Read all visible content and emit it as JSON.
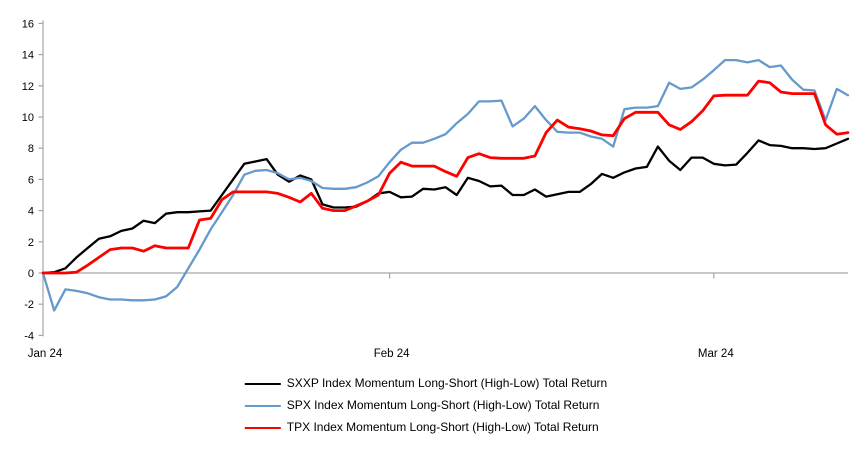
{
  "chart_data": {
    "type": "line",
    "title": "",
    "xlabel": "",
    "ylabel": "",
    "ylim": [
      -4,
      16
    ],
    "y_ticks": [
      16,
      14,
      12,
      10,
      8,
      6,
      4,
      2,
      0,
      -2,
      -4
    ],
    "grid": "zero-baseline-only",
    "legend_position": "bottom",
    "axis_color": "#A6A6A6",
    "x_ticks": [
      {
        "label": "Jan 24",
        "index": 0
      },
      {
        "label": "Feb 24",
        "index": 31
      },
      {
        "label": "Mar 24",
        "index": 60
      }
    ],
    "n_points": 73,
    "series": [
      {
        "name": "SXXP Index Momentum Long-Short (High-Low) Total Return",
        "color": "#000000",
        "line_width": 2.3,
        "values": [
          0,
          0.05,
          0.3,
          1.0,
          1.6,
          2.2,
          2.35,
          2.7,
          2.85,
          3.35,
          3.2,
          3.8,
          3.9,
          3.9,
          3.95,
          4.0,
          5.0,
          6.0,
          7.0,
          7.15,
          7.3,
          6.3,
          5.85,
          6.25,
          6.0,
          4.4,
          4.2,
          4.2,
          4.25,
          4.6,
          5.1,
          5.2,
          4.85,
          4.9,
          5.4,
          5.35,
          5.5,
          5.0,
          6.1,
          5.9,
          5.55,
          5.6,
          5.0,
          5.0,
          5.35,
          4.9,
          5.05,
          5.2,
          5.2,
          5.7,
          6.35,
          6.1,
          6.45,
          6.7,
          6.8,
          8.1,
          7.2,
          6.6,
          7.4,
          7.4,
          7.0,
          6.9,
          6.95,
          7.7,
          8.5,
          8.2,
          8.15,
          8.0,
          8.0,
          7.95,
          8.0,
          8.3,
          8.6
        ]
      },
      {
        "name": "SPX Index Momentum Long-Short (High-Low) Total Return",
        "color": "#6699CC",
        "line_width": 2.3,
        "values": [
          0,
          -2.4,
          -1.05,
          -1.15,
          -1.3,
          -1.55,
          -1.7,
          -1.7,
          -1.75,
          -1.75,
          -1.7,
          -1.5,
          -0.9,
          0.3,
          1.5,
          2.8,
          3.9,
          5.0,
          6.3,
          6.55,
          6.6,
          6.4,
          6.0,
          6.1,
          5.9,
          5.45,
          5.4,
          5.4,
          5.5,
          5.8,
          6.2,
          7.1,
          7.9,
          8.35,
          8.35,
          8.6,
          8.9,
          9.6,
          10.2,
          11.0,
          11.0,
          11.05,
          9.4,
          9.9,
          10.7,
          9.8,
          9.05,
          9.0,
          9.0,
          8.75,
          8.6,
          8.1,
          10.5,
          10.6,
          10.6,
          10.7,
          12.2,
          11.8,
          11.9,
          12.4,
          13.0,
          13.65,
          13.65,
          13.5,
          13.65,
          13.2,
          13.3,
          12.4,
          11.75,
          11.7,
          9.8,
          11.8,
          11.4
        ]
      },
      {
        "name": "TPX Index Momentum Long-Short (High-Low) Total Return",
        "color": "#FF0000",
        "line_width": 2.8,
        "values": [
          0,
          0,
          0,
          0.05,
          0.5,
          1.0,
          1.5,
          1.6,
          1.6,
          1.4,
          1.75,
          1.6,
          1.6,
          1.6,
          3.4,
          3.5,
          4.7,
          5.2,
          5.2,
          5.2,
          5.2,
          5.1,
          4.85,
          4.55,
          5.1,
          4.15,
          4.0,
          4.0,
          4.3,
          4.6,
          5.0,
          6.4,
          7.1,
          6.85,
          6.85,
          6.85,
          6.5,
          6.2,
          7.4,
          7.65,
          7.4,
          7.35,
          7.35,
          7.35,
          7.5,
          9.0,
          9.8,
          9.35,
          9.25,
          9.1,
          8.85,
          8.8,
          9.9,
          10.3,
          10.3,
          10.3,
          9.5,
          9.2,
          9.7,
          10.4,
          11.35,
          11.4,
          11.4,
          11.4,
          12.3,
          12.2,
          11.6,
          11.5,
          11.5,
          11.5,
          9.5,
          8.9,
          9.0
        ]
      }
    ]
  }
}
